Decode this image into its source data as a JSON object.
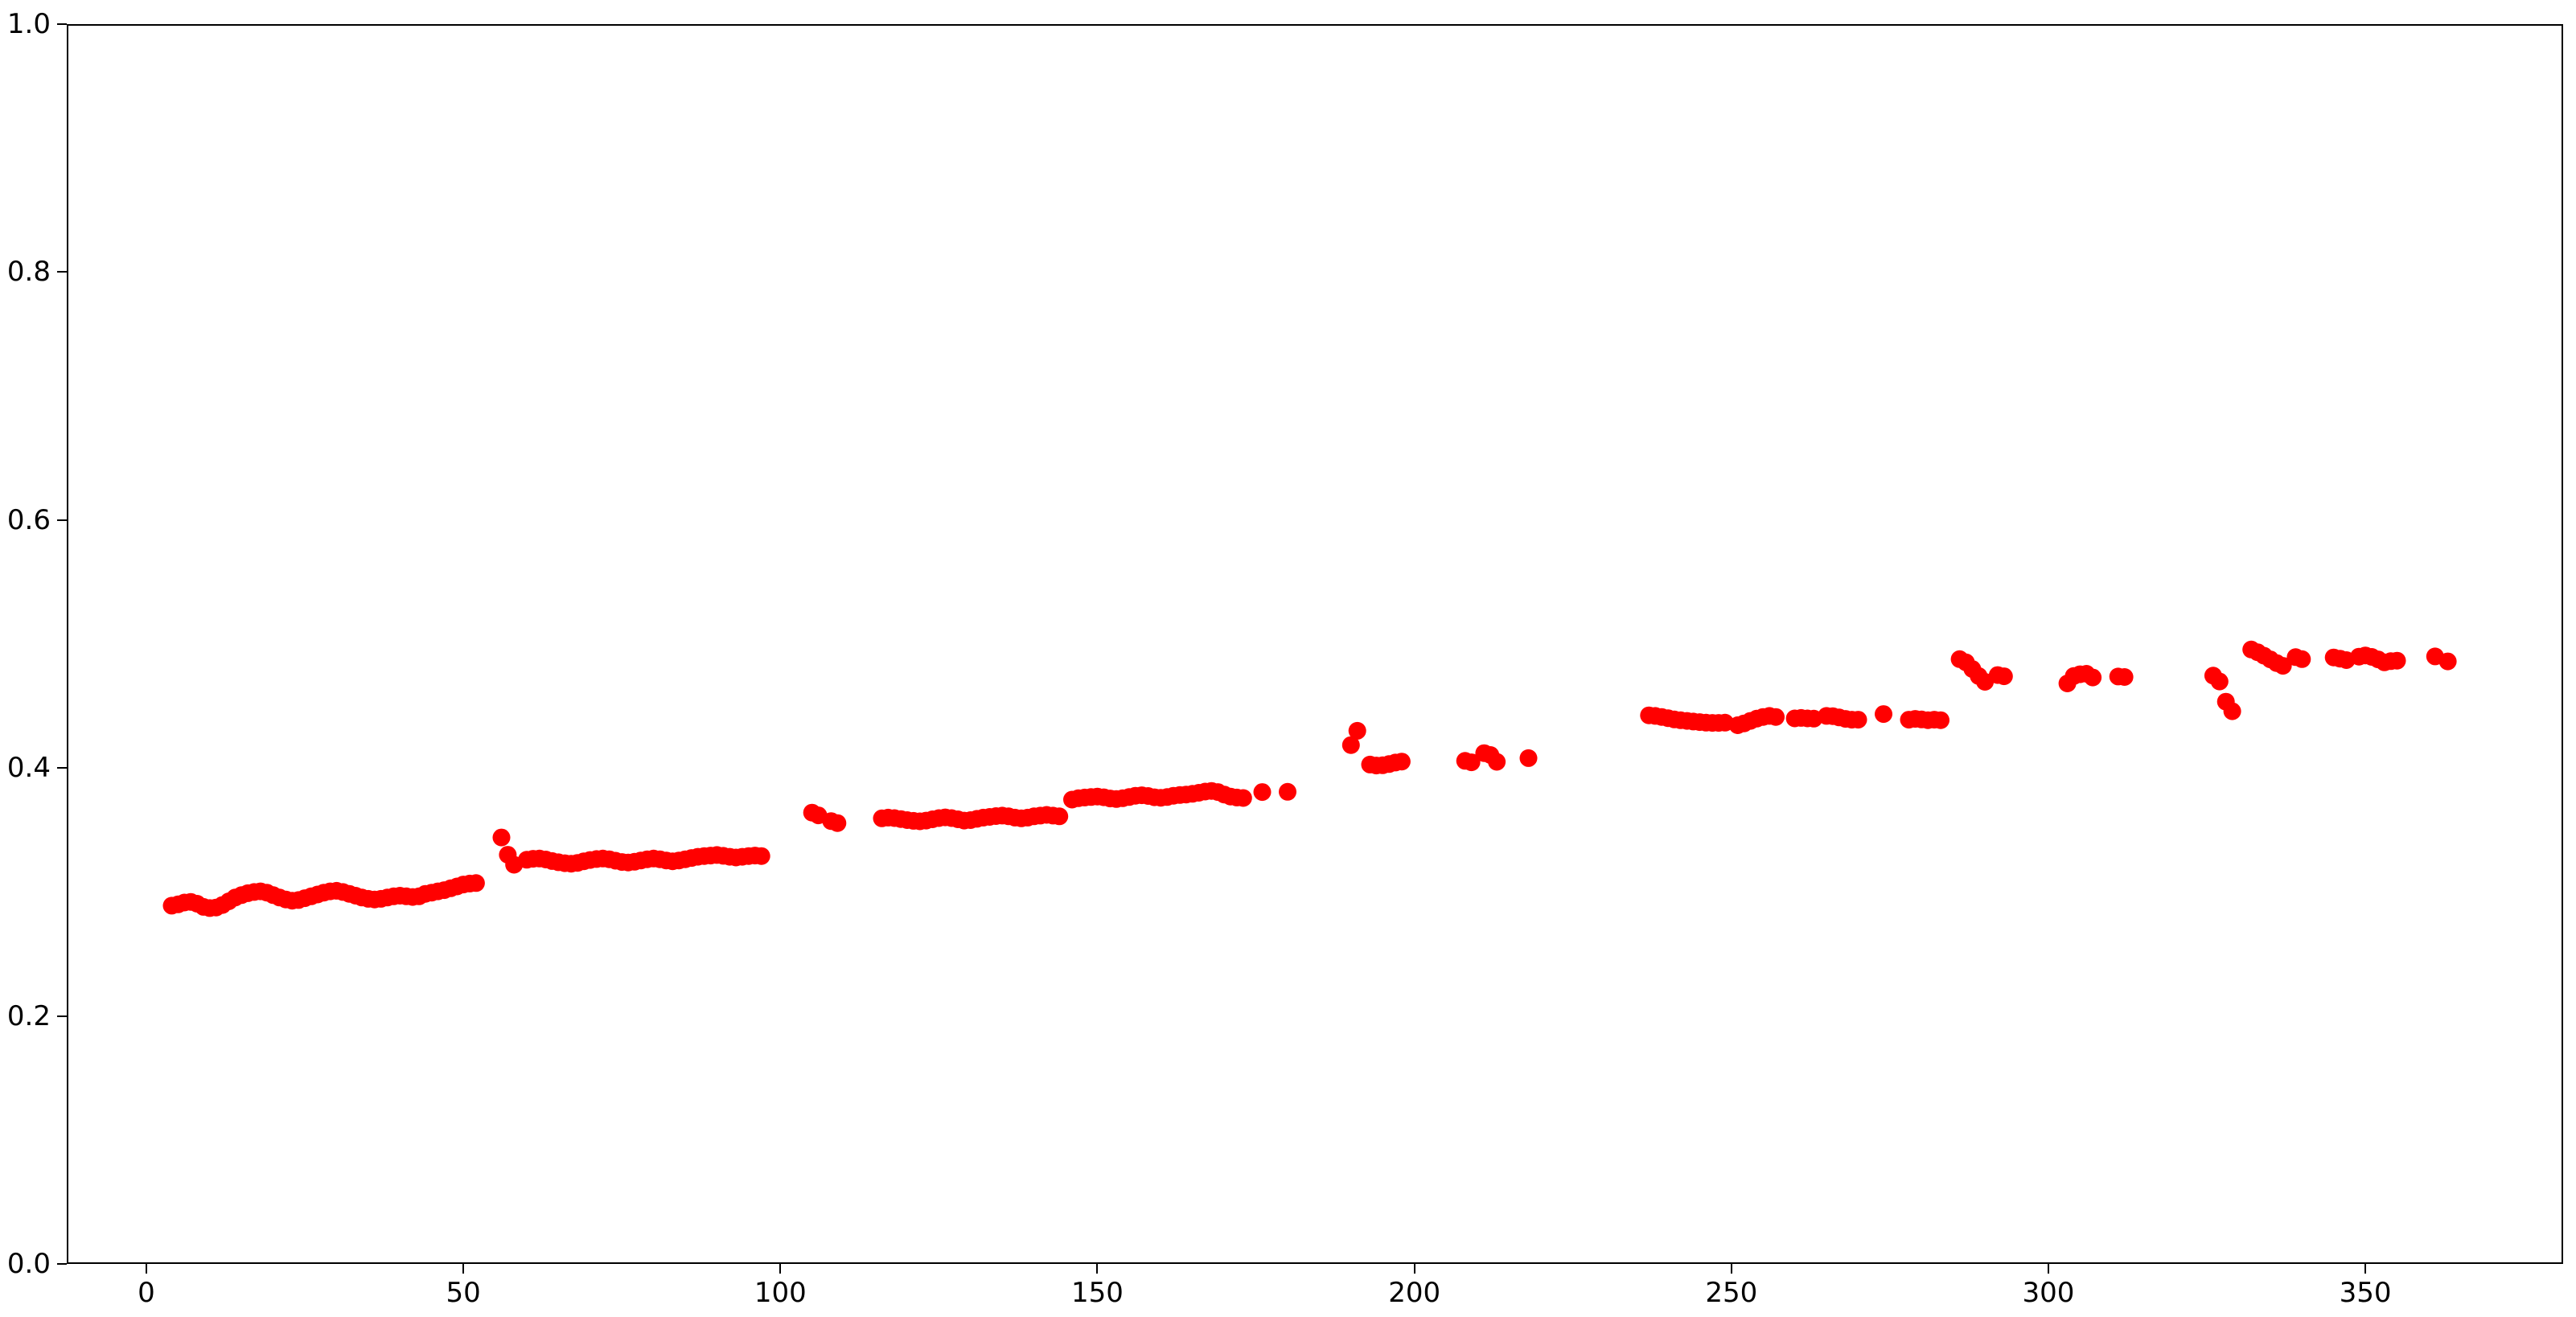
{
  "figure": {
    "background": "#ffffff",
    "spine_color": "#000000",
    "tick_color": "#000000",
    "tick_label_color": "#000000"
  },
  "chart_data": {
    "type": "scatter",
    "title": "",
    "xlabel": "",
    "ylabel": "",
    "grid": false,
    "legend": null,
    "xlim": [
      -12.56,
      381.19
    ],
    "ylim": [
      0.0,
      1.0
    ],
    "xticks": [
      0,
      50,
      100,
      150,
      200,
      250,
      300,
      350
    ],
    "xtick_labels": [
      "0",
      "50",
      "100",
      "150",
      "200",
      "250",
      "300",
      "350"
    ],
    "yticks": [
      0.0,
      0.2,
      0.4,
      0.6,
      0.8,
      1.0
    ],
    "ytick_labels": [
      "0.0",
      "0.2",
      "0.4",
      "0.6",
      "0.8",
      "1.0"
    ],
    "marker": {
      "shape": "circle",
      "color": "#ff0000",
      "radius_px": 11
    },
    "points": [
      [
        4,
        0.289
      ],
      [
        5,
        0.29
      ],
      [
        6,
        0.2915
      ],
      [
        7,
        0.292
      ],
      [
        8,
        0.2905
      ],
      [
        9,
        0.288
      ],
      [
        10,
        0.287
      ],
      [
        11,
        0.2875
      ],
      [
        12,
        0.2895
      ],
      [
        13,
        0.2925
      ],
      [
        14,
        0.2955
      ],
      [
        15,
        0.2975
      ],
      [
        16,
        0.299
      ],
      [
        17,
        0.3
      ],
      [
        18,
        0.3005
      ],
      [
        19,
        0.2995
      ],
      [
        20,
        0.2975
      ],
      [
        21,
        0.2955
      ],
      [
        22,
        0.294
      ],
      [
        23,
        0.293
      ],
      [
        24,
        0.2935
      ],
      [
        25,
        0.295
      ],
      [
        26,
        0.2965
      ],
      [
        27,
        0.298
      ],
      [
        28,
        0.2995
      ],
      [
        29,
        0.3005
      ],
      [
        30,
        0.301
      ],
      [
        31,
        0.3
      ],
      [
        32,
        0.2985
      ],
      [
        33,
        0.297
      ],
      [
        34,
        0.2955
      ],
      [
        35,
        0.2945
      ],
      [
        36,
        0.294
      ],
      [
        37,
        0.2945
      ],
      [
        38,
        0.2955
      ],
      [
        39,
        0.2965
      ],
      [
        40,
        0.297
      ],
      [
        41,
        0.2965
      ],
      [
        42,
        0.296
      ],
      [
        43,
        0.2965
      ],
      [
        44,
        0.2985
      ],
      [
        45,
        0.2995
      ],
      [
        46,
        0.3005
      ],
      [
        47,
        0.3015
      ],
      [
        48,
        0.303
      ],
      [
        49,
        0.3045
      ],
      [
        50,
        0.306
      ],
      [
        51,
        0.3068
      ],
      [
        52,
        0.3072
      ],
      [
        56,
        0.344
      ],
      [
        57,
        0.33
      ],
      [
        58,
        0.322
      ],
      [
        60,
        0.326
      ],
      [
        61,
        0.3268
      ],
      [
        62,
        0.327
      ],
      [
        63,
        0.3262
      ],
      [
        64,
        0.325
      ],
      [
        65,
        0.324
      ],
      [
        66,
        0.3232
      ],
      [
        67,
        0.3228
      ],
      [
        68,
        0.3235
      ],
      [
        69,
        0.3248
      ],
      [
        70,
        0.3258
      ],
      [
        71,
        0.3266
      ],
      [
        72,
        0.327
      ],
      [
        73,
        0.3264
      ],
      [
        74,
        0.3252
      ],
      [
        75,
        0.3242
      ],
      [
        76,
        0.3238
      ],
      [
        77,
        0.3244
      ],
      [
        78,
        0.3254
      ],
      [
        79,
        0.3264
      ],
      [
        80,
        0.327
      ],
      [
        81,
        0.3264
      ],
      [
        82,
        0.3254
      ],
      [
        83,
        0.3248
      ],
      [
        84,
        0.3254
      ],
      [
        85,
        0.3264
      ],
      [
        86,
        0.3274
      ],
      [
        87,
        0.3284
      ],
      [
        88,
        0.329
      ],
      [
        89,
        0.3294
      ],
      [
        90,
        0.3298
      ],
      [
        91,
        0.3292
      ],
      [
        92,
        0.3284
      ],
      [
        93,
        0.3278
      ],
      [
        94,
        0.3284
      ],
      [
        95,
        0.329
      ],
      [
        96,
        0.3294
      ],
      [
        97,
        0.329
      ],
      [
        105,
        0.364
      ],
      [
        106,
        0.3618
      ],
      [
        108,
        0.3572
      ],
      [
        109,
        0.3556
      ],
      [
        116,
        0.3594
      ],
      [
        117,
        0.36
      ],
      [
        118,
        0.3596
      ],
      [
        119,
        0.3588
      ],
      [
        120,
        0.358
      ],
      [
        121,
        0.3574
      ],
      [
        122,
        0.357
      ],
      [
        123,
        0.3576
      ],
      [
        124,
        0.3586
      ],
      [
        125,
        0.3596
      ],
      [
        126,
        0.3602
      ],
      [
        127,
        0.3596
      ],
      [
        128,
        0.3586
      ],
      [
        129,
        0.3576
      ],
      [
        130,
        0.358
      ],
      [
        131,
        0.359
      ],
      [
        132,
        0.36
      ],
      [
        133,
        0.3606
      ],
      [
        134,
        0.3612
      ],
      [
        135,
        0.3616
      ],
      [
        136,
        0.361
      ],
      [
        137,
        0.36
      ],
      [
        138,
        0.3594
      ],
      [
        139,
        0.36
      ],
      [
        140,
        0.361
      ],
      [
        141,
        0.3616
      ],
      [
        142,
        0.3622
      ],
      [
        143,
        0.3616
      ],
      [
        144,
        0.361
      ],
      [
        146,
        0.3745
      ],
      [
        147,
        0.3756
      ],
      [
        148,
        0.3762
      ],
      [
        149,
        0.3766
      ],
      [
        150,
        0.377
      ],
      [
        151,
        0.3764
      ],
      [
        152,
        0.3754
      ],
      [
        153,
        0.375
      ],
      [
        154,
        0.3756
      ],
      [
        155,
        0.3766
      ],
      [
        156,
        0.3776
      ],
      [
        157,
        0.378
      ],
      [
        158,
        0.3774
      ],
      [
        159,
        0.3764
      ],
      [
        160,
        0.376
      ],
      [
        161,
        0.3766
      ],
      [
        162,
        0.3776
      ],
      [
        163,
        0.3782
      ],
      [
        164,
        0.3786
      ],
      [
        165,
        0.3792
      ],
      [
        166,
        0.38
      ],
      [
        167,
        0.381
      ],
      [
        168,
        0.3815
      ],
      [
        169,
        0.3806
      ],
      [
        170,
        0.3786
      ],
      [
        171,
        0.377
      ],
      [
        172,
        0.3762
      ],
      [
        173,
        0.3758
      ],
      [
        176,
        0.3806
      ],
      [
        180,
        0.3808
      ],
      [
        190,
        0.4185
      ],
      [
        191,
        0.43
      ],
      [
        193,
        0.4028
      ],
      [
        194,
        0.402
      ],
      [
        195,
        0.4022
      ],
      [
        196,
        0.4032
      ],
      [
        197,
        0.4044
      ],
      [
        198,
        0.4052
      ],
      [
        208,
        0.4058
      ],
      [
        209,
        0.4046
      ],
      [
        211,
        0.412
      ],
      [
        212,
        0.4105
      ],
      [
        213,
        0.405
      ],
      [
        218,
        0.408
      ],
      [
        237,
        0.4425
      ],
      [
        238,
        0.442
      ],
      [
        239,
        0.4412
      ],
      [
        240,
        0.4402
      ],
      [
        241,
        0.4392
      ],
      [
        242,
        0.4385
      ],
      [
        243,
        0.438
      ],
      [
        244,
        0.4375
      ],
      [
        245,
        0.437
      ],
      [
        246,
        0.4366
      ],
      [
        247,
        0.4364
      ],
      [
        248,
        0.4364
      ],
      [
        249,
        0.4366
      ],
      [
        251,
        0.4345
      ],
      [
        252,
        0.436
      ],
      [
        253,
        0.438
      ],
      [
        254,
        0.4398
      ],
      [
        255,
        0.4412
      ],
      [
        256,
        0.442
      ],
      [
        257,
        0.4412
      ],
      [
        260,
        0.44
      ],
      [
        261,
        0.4404
      ],
      [
        262,
        0.44
      ],
      [
        263,
        0.4398
      ],
      [
        265,
        0.442
      ],
      [
        266,
        0.4418
      ],
      [
        267,
        0.4408
      ],
      [
        268,
        0.4396
      ],
      [
        269,
        0.439
      ],
      [
        270,
        0.439
      ],
      [
        274,
        0.4435
      ],
      [
        278,
        0.439
      ],
      [
        279,
        0.4396
      ],
      [
        280,
        0.4392
      ],
      [
        281,
        0.4386
      ],
      [
        282,
        0.439
      ],
      [
        283,
        0.4386
      ],
      [
        286,
        0.4878
      ],
      [
        287,
        0.4852
      ],
      [
        288,
        0.4798
      ],
      [
        289,
        0.4742
      ],
      [
        290,
        0.4695
      ],
      [
        292,
        0.475
      ],
      [
        293,
        0.474
      ],
      [
        303,
        0.4682
      ],
      [
        304,
        0.4742
      ],
      [
        305,
        0.4756
      ],
      [
        306,
        0.476
      ],
      [
        307,
        0.473
      ],
      [
        311,
        0.4738
      ],
      [
        312,
        0.4734
      ],
      [
        326,
        0.4745
      ],
      [
        327,
        0.4698
      ],
      [
        328,
        0.4535
      ],
      [
        329,
        0.4458
      ],
      [
        332,
        0.4956
      ],
      [
        333,
        0.4934
      ],
      [
        334,
        0.4906
      ],
      [
        335,
        0.4876
      ],
      [
        336,
        0.4846
      ],
      [
        337,
        0.4824
      ],
      [
        339,
        0.4894
      ],
      [
        340,
        0.4878
      ],
      [
        345,
        0.4892
      ],
      [
        346,
        0.4882
      ],
      [
        347,
        0.487
      ],
      [
        349,
        0.4898
      ],
      [
        350,
        0.4908
      ],
      [
        351,
        0.4896
      ],
      [
        352,
        0.4876
      ],
      [
        353,
        0.4852
      ],
      [
        354,
        0.4862
      ],
      [
        355,
        0.4866
      ],
      [
        361,
        0.49
      ],
      [
        363,
        0.486
      ]
    ]
  }
}
